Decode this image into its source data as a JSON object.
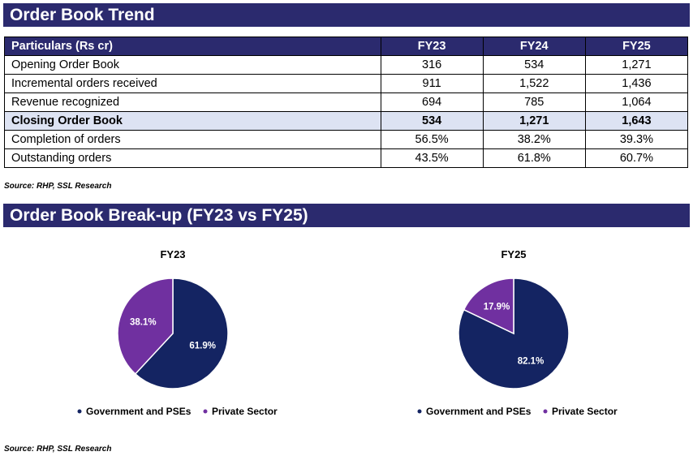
{
  "sections": {
    "trend_title": "Order Book Trend",
    "breakup_title": "Order Book Break-up (FY23 vs FY25)",
    "source_1": "Source: RHP, SSL Research",
    "source_2": "Source: RHP, SSL Research"
  },
  "colors": {
    "header_bg": "#2b2a6e",
    "highlight_row": "#dde3f3",
    "government": "#142462",
    "private": "#7030a0"
  },
  "table": {
    "headers": [
      "Particulars (Rs cr)",
      "FY23",
      "FY24",
      "FY25"
    ],
    "rows": [
      {
        "label": "Opening Order Book",
        "values": [
          "316",
          "534",
          "1,271"
        ],
        "highlight": false
      },
      {
        "label": "Incremental orders received",
        "values": [
          "911",
          "1,522",
          "1,436"
        ],
        "highlight": false
      },
      {
        "label": "Revenue recognized",
        "values": [
          "694",
          "785",
          "1,064"
        ],
        "highlight": false
      },
      {
        "label": "Closing Order Book",
        "values": [
          "534",
          "1,271",
          "1,643"
        ],
        "highlight": true
      },
      {
        "label": "Completion of orders",
        "values": [
          "56.5%",
          "38.2%",
          "39.3%"
        ],
        "highlight": false
      },
      {
        "label": "Outstanding orders",
        "values": [
          "43.5%",
          "61.8%",
          "60.7%"
        ],
        "highlight": false
      }
    ]
  },
  "chart_data": [
    {
      "type": "pie",
      "title": "FY23",
      "categories": [
        "Government and PSEs",
        "Private Sector"
      ],
      "values": [
        61.9,
        38.1
      ],
      "labels": [
        "61.9%",
        "38.1%"
      ],
      "legend": "bottom"
    },
    {
      "type": "pie",
      "title": "FY25",
      "categories": [
        "Government and PSEs",
        "Private Sector"
      ],
      "values": [
        82.1,
        17.9
      ],
      "labels": [
        "82.1%",
        "17.9%"
      ],
      "legend": "bottom"
    }
  ]
}
